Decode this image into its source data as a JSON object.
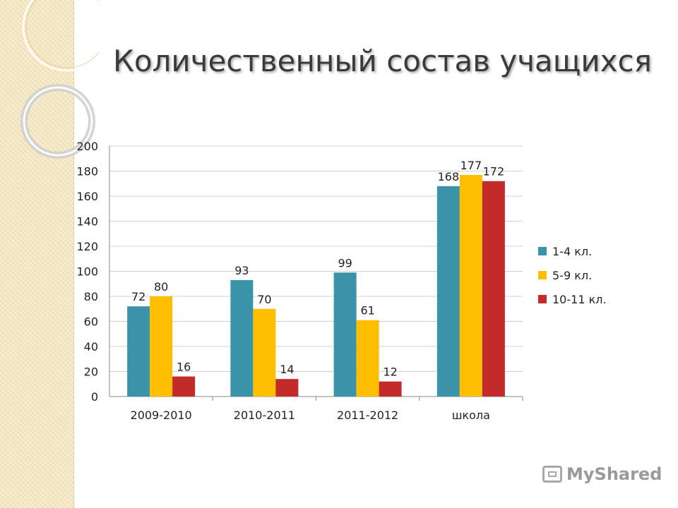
{
  "slide": {
    "title": "Количественный состав учащихся",
    "watermark": "MyShared"
  },
  "colors": {
    "series": [
      "#3a93a8",
      "#ffbf00",
      "#c32a2a"
    ],
    "gridline": "#d0d0d0",
    "axis": "#8a8a8a",
    "text": "#222222"
  },
  "chart_data": {
    "type": "bar",
    "categories": [
      "2009-2010",
      "2010-2011",
      "2011-2012",
      "школа"
    ],
    "series": [
      {
        "name": "1-4 кл.",
        "values": [
          72,
          93,
          99,
          168
        ]
      },
      {
        "name": "5-9 кл.",
        "values": [
          80,
          70,
          61,
          177
        ]
      },
      {
        "name": "10-11 кл.",
        "values": [
          16,
          14,
          12,
          172
        ]
      }
    ],
    "ylim": [
      0,
      200
    ],
    "yticks": [
      0,
      20,
      40,
      60,
      80,
      100,
      120,
      140,
      160,
      180,
      200
    ],
    "grid": true,
    "legend": "right",
    "data_labels": true
  }
}
